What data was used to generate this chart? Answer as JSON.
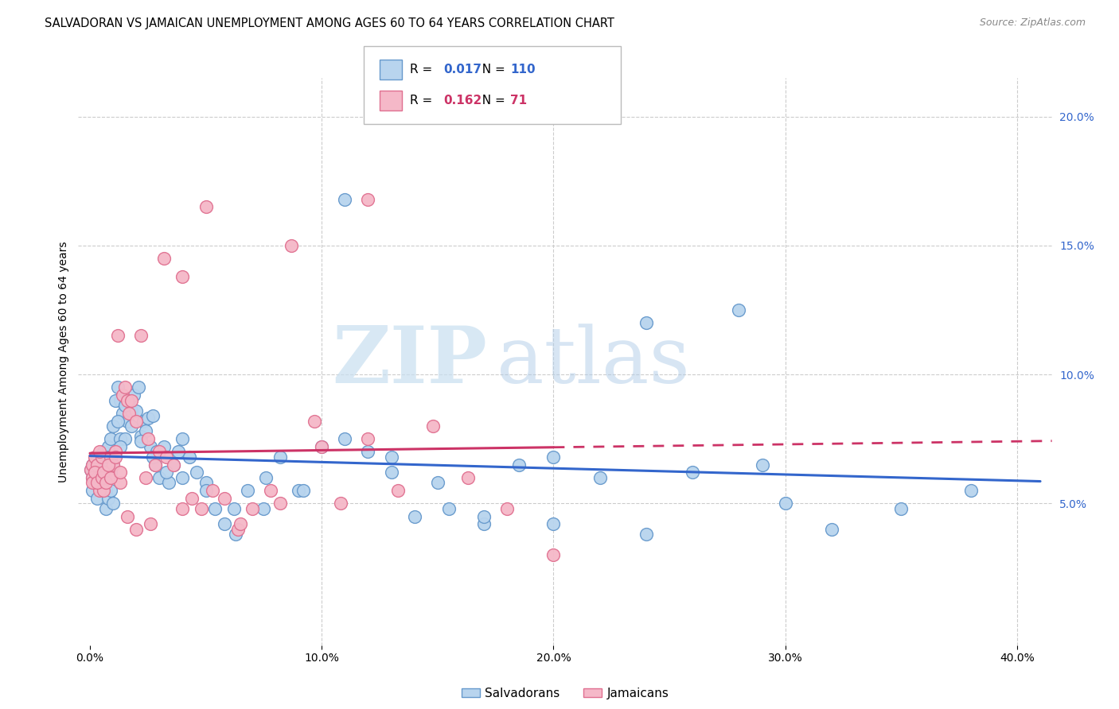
{
  "title": "SALVADORAN VS JAMAICAN UNEMPLOYMENT AMONG AGES 60 TO 64 YEARS CORRELATION CHART",
  "source": "Source: ZipAtlas.com",
  "ylabel": "Unemployment Among Ages 60 to 64 years",
  "xlabel_ticks": [
    "0.0%",
    "10.0%",
    "20.0%",
    "30.0%",
    "40.0%"
  ],
  "xlabel_vals": [
    0.0,
    0.1,
    0.2,
    0.3,
    0.4
  ],
  "ylabel_ticks_right": [
    "20.0%",
    "15.0%",
    "10.0%",
    "5.0%"
  ],
  "ylabel_vals": [
    0.2,
    0.15,
    0.1,
    0.05
  ],
  "xlim": [
    -0.005,
    0.415
  ],
  "ylim": [
    -0.005,
    0.215
  ],
  "watermark_zip": "ZIP",
  "watermark_atlas": "atlas",
  "blue_color": "#b8d4ee",
  "blue_edge": "#6699cc",
  "pink_color": "#f5b8c8",
  "pink_edge": "#e07090",
  "blue_line_color": "#3366cc",
  "pink_line_color": "#cc3366",
  "legend_blue_R": "0.017",
  "legend_blue_N": "110",
  "legend_pink_R": "0.162",
  "legend_pink_N": "71",
  "title_fontsize": 10.5,
  "source_fontsize": 9,
  "legend_fontsize": 11,
  "tick_fontsize": 10,
  "ylabel_fontsize": 10,
  "background_color": "#ffffff",
  "grid_color": "#cccccc",
  "salvadoran_x": [
    0.0005,
    0.001,
    0.001,
    0.0015,
    0.002,
    0.002,
    0.002,
    0.003,
    0.003,
    0.003,
    0.004,
    0.004,
    0.004,
    0.005,
    0.005,
    0.005,
    0.006,
    0.006,
    0.007,
    0.007,
    0.008,
    0.008,
    0.009,
    0.009,
    0.01,
    0.01,
    0.011,
    0.012,
    0.013,
    0.013,
    0.014,
    0.015,
    0.015,
    0.016,
    0.017,
    0.018,
    0.019,
    0.02,
    0.021,
    0.022,
    0.023,
    0.024,
    0.025,
    0.026,
    0.027,
    0.028,
    0.029,
    0.03,
    0.032,
    0.034,
    0.036,
    0.038,
    0.04,
    0.043,
    0.046,
    0.05,
    0.054,
    0.058,
    0.063,
    0.068,
    0.075,
    0.082,
    0.09,
    0.1,
    0.11,
    0.12,
    0.13,
    0.14,
    0.155,
    0.17,
    0.185,
    0.2,
    0.22,
    0.24,
    0.26,
    0.28,
    0.3,
    0.32,
    0.35,
    0.38,
    0.001,
    0.002,
    0.003,
    0.004,
    0.005,
    0.006,
    0.007,
    0.008,
    0.009,
    0.01,
    0.011,
    0.012,
    0.013,
    0.015,
    0.018,
    0.022,
    0.027,
    0.033,
    0.04,
    0.05,
    0.062,
    0.076,
    0.092,
    0.11,
    0.13,
    0.15,
    0.17,
    0.2,
    0.24,
    0.29
  ],
  "salvadoran_y": [
    0.063,
    0.065,
    0.06,
    0.063,
    0.06,
    0.065,
    0.058,
    0.062,
    0.068,
    0.06,
    0.065,
    0.06,
    0.058,
    0.063,
    0.068,
    0.06,
    0.07,
    0.06,
    0.065,
    0.055,
    0.072,
    0.068,
    0.062,
    0.075,
    0.065,
    0.08,
    0.07,
    0.095,
    0.09,
    0.075,
    0.085,
    0.09,
    0.075,
    0.082,
    0.09,
    0.086,
    0.092,
    0.086,
    0.095,
    0.076,
    0.082,
    0.078,
    0.083,
    0.072,
    0.084,
    0.065,
    0.07,
    0.06,
    0.072,
    0.058,
    0.065,
    0.07,
    0.075,
    0.068,
    0.062,
    0.058,
    0.048,
    0.042,
    0.038,
    0.055,
    0.048,
    0.068,
    0.055,
    0.072,
    0.168,
    0.07,
    0.062,
    0.045,
    0.048,
    0.042,
    0.065,
    0.068,
    0.06,
    0.12,
    0.062,
    0.125,
    0.05,
    0.04,
    0.048,
    0.055,
    0.055,
    0.058,
    0.052,
    0.06,
    0.058,
    0.055,
    0.048,
    0.052,
    0.055,
    0.05,
    0.09,
    0.082,
    0.072,
    0.088,
    0.08,
    0.074,
    0.068,
    0.062,
    0.06,
    0.055,
    0.048,
    0.06,
    0.055,
    0.075,
    0.068,
    0.058,
    0.045,
    0.042,
    0.038,
    0.065
  ],
  "jamaican_x": [
    0.0005,
    0.001,
    0.001,
    0.002,
    0.002,
    0.003,
    0.003,
    0.004,
    0.004,
    0.005,
    0.005,
    0.006,
    0.006,
    0.007,
    0.008,
    0.009,
    0.01,
    0.011,
    0.012,
    0.013,
    0.014,
    0.015,
    0.016,
    0.017,
    0.018,
    0.02,
    0.022,
    0.024,
    0.026,
    0.028,
    0.03,
    0.033,
    0.036,
    0.04,
    0.044,
    0.048,
    0.053,
    0.058,
    0.064,
    0.07,
    0.078,
    0.087,
    0.097,
    0.108,
    0.12,
    0.133,
    0.148,
    0.163,
    0.18,
    0.2,
    0.001,
    0.002,
    0.003,
    0.004,
    0.005,
    0.006,
    0.007,
    0.008,
    0.009,
    0.011,
    0.013,
    0.016,
    0.02,
    0.025,
    0.032,
    0.04,
    0.05,
    0.065,
    0.082,
    0.1,
    0.12
  ],
  "jamaican_y": [
    0.063,
    0.06,
    0.065,
    0.058,
    0.068,
    0.06,
    0.065,
    0.055,
    0.06,
    0.058,
    0.068,
    0.06,
    0.055,
    0.062,
    0.06,
    0.068,
    0.065,
    0.07,
    0.115,
    0.058,
    0.092,
    0.095,
    0.09,
    0.085,
    0.09,
    0.082,
    0.115,
    0.06,
    0.042,
    0.065,
    0.07,
    0.068,
    0.065,
    0.048,
    0.052,
    0.048,
    0.055,
    0.052,
    0.04,
    0.048,
    0.055,
    0.15,
    0.082,
    0.05,
    0.075,
    0.055,
    0.08,
    0.06,
    0.048,
    0.03,
    0.058,
    0.062,
    0.058,
    0.07,
    0.06,
    0.062,
    0.058,
    0.065,
    0.06,
    0.068,
    0.062,
    0.045,
    0.04,
    0.075,
    0.145,
    0.138,
    0.165,
    0.042,
    0.05,
    0.072,
    0.168
  ]
}
